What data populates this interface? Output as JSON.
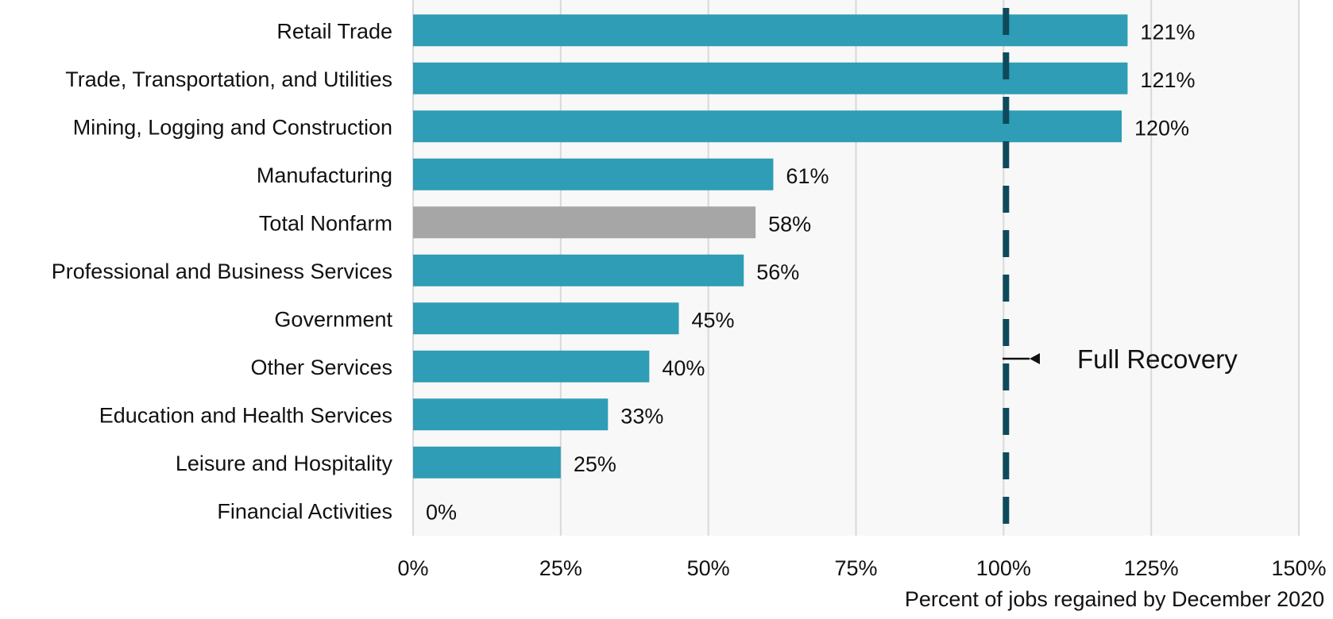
{
  "chart_data": {
    "type": "bar",
    "orientation": "horizontal",
    "categories": [
      "Retail Trade",
      "Trade, Transportation, and Utilities",
      "Mining, Logging and Construction",
      "Manufacturing",
      "Total Nonfarm",
      "Professional and Business Services",
      "Government",
      "Other Services",
      "Education and Health Services",
      "Leisure and Hospitality",
      "Financial Activities"
    ],
    "values": [
      121,
      121,
      120,
      61,
      58,
      56,
      45,
      40,
      33,
      25,
      0
    ],
    "value_labels": [
      "121%",
      "121%",
      "120%",
      "61%",
      "58%",
      "56%",
      "45%",
      "40%",
      "33%",
      "25%",
      "0%"
    ],
    "highlight_category": "Total Nonfarm",
    "xlim": [
      0,
      150
    ],
    "xticks": [
      0,
      25,
      50,
      75,
      100,
      125,
      150
    ],
    "xtick_labels": [
      "0%",
      "25%",
      "50%",
      "75%",
      "100%",
      "125%",
      "150%"
    ],
    "xlabel": "Percent of jobs regained by December 2020",
    "title": "",
    "grid": "vertical",
    "reference_line": {
      "value": 100,
      "style": "dashed",
      "label": "Full Recovery"
    },
    "colors": {
      "bar": "#2e9db5",
      "highlight_bar": "#a6a6a6",
      "reference_line": "#0d4a5c",
      "plot_background": "#f8f8f8",
      "grid": "#d9d9d9"
    }
  }
}
